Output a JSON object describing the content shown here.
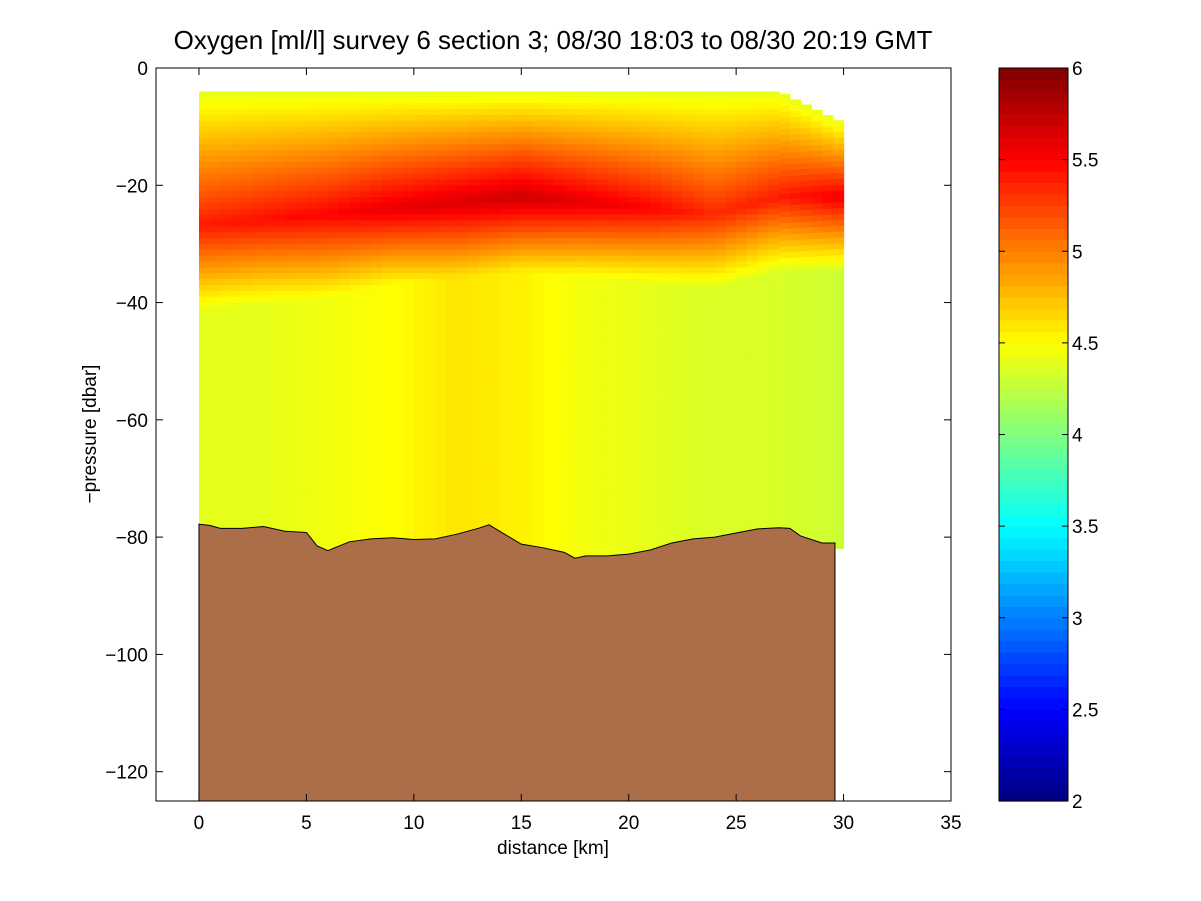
{
  "chart_data": {
    "type": "heatmap",
    "title": "Oxygen [ml/l] survey 6 section 3; 08/30 18:03 to 08/30 20:19 GMT",
    "xlabel": "distance [km]",
    "ylabel": "−pressure [dbar]",
    "xlim": [
      -2,
      35
    ],
    "ylim": [
      -125,
      0
    ],
    "xticks": [
      0,
      5,
      10,
      15,
      20,
      25,
      30,
      35
    ],
    "xtick_labels": [
      "0",
      "5",
      "10",
      "15",
      "20",
      "25",
      "30",
      "35"
    ],
    "yticks": [
      0,
      -20,
      -40,
      -60,
      -80,
      -100,
      -120
    ],
    "ytick_labels": [
      "0",
      "−20",
      "−40",
      "−60",
      "−80",
      "−100",
      "−120"
    ],
    "colorbar": {
      "colormap": "jet",
      "clim": [
        2,
        6
      ],
      "ticks": [
        2,
        2.5,
        3,
        3.5,
        4,
        4.5,
        5,
        5.5,
        6
      ],
      "tick_labels": [
        "2",
        "2.5",
        "3",
        "3.5",
        "4",
        "4.5",
        "5",
        "5.5",
        "6"
      ]
    },
    "grid": false,
    "colors": {
      "bathymetry_fill": "#ac6e48",
      "axes": "#000000",
      "background": "#ffffff"
    },
    "section_x_range_km": [
      0,
      29.8
    ],
    "layer_profile": {
      "x": [
        0,
        3,
        6,
        9,
        12,
        15,
        18,
        21,
        24,
        27,
        29.8
      ],
      "surface_depth": [
        -4,
        -4,
        -4,
        -4,
        -4,
        -4,
        -4,
        -4,
        -4,
        -4,
        -9
      ],
      "max_core_depth": [
        -27,
        -26,
        -25,
        -24,
        -23,
        -22,
        -23,
        -24,
        -25,
        -22,
        -22
      ],
      "max_value": [
        5.4,
        5.45,
        5.5,
        5.6,
        5.65,
        5.7,
        5.6,
        5.5,
        5.35,
        5.4,
        5.55
      ],
      "core_half_width": [
        9,
        9,
        9,
        8,
        8,
        8,
        8,
        8,
        8,
        8,
        8
      ],
      "deep_value": [
        4.4,
        4.4,
        4.45,
        4.5,
        4.6,
        4.55,
        4.45,
        4.4,
        4.35,
        4.35,
        4.3
      ]
    },
    "bathymetry": {
      "x": [
        0,
        0.5,
        1,
        2,
        3,
        4,
        5,
        5.5,
        6,
        7,
        8,
        9,
        10,
        11,
        12,
        13,
        13.5,
        14,
        15,
        16,
        17,
        17.5,
        18,
        19,
        20,
        21,
        22,
        23,
        24,
        25,
        26,
        27,
        27.5,
        28,
        29,
        29.6
      ],
      "y": [
        -77.8,
        -78,
        -78.5,
        -78.5,
        -78.2,
        -79,
        -79.2,
        -81.5,
        -82.3,
        -80.8,
        -80.3,
        -80.1,
        -80.4,
        -80.3,
        -79.5,
        -78.5,
        -77.9,
        -79,
        -81.2,
        -81.8,
        -82.6,
        -83.6,
        -83.2,
        -83.2,
        -82.9,
        -82.2,
        -81,
        -80.3,
        -80,
        -79.3,
        -78.6,
        -78.4,
        -78.5,
        -79.8,
        -81,
        -81
      ]
    }
  }
}
